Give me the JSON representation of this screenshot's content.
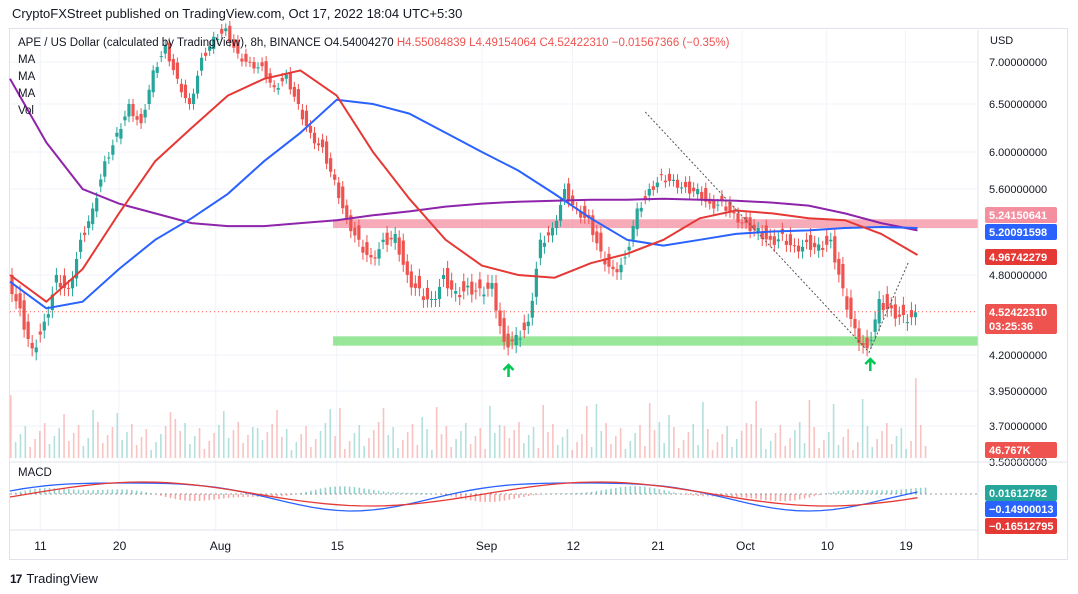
{
  "header": {
    "published": "CryptoFXStreet published on TradingView.com, Oct 17, 2022 18:04 UTC+5:30"
  },
  "legend": {
    "symbol": "APE / US Dollar (calculated by TradingView), 8h, BINANCE",
    "open": "O4.54004270",
    "high": "H4.55084839",
    "low": "L4.49154064",
    "close": "C4.52422310",
    "change": "−0.01567366 (−0.35%)",
    "ma_labels": [
      "MA",
      "MA",
      "MA"
    ],
    "vol_label": "Vol"
  },
  "macd_label": "MACD",
  "footer": {
    "brand": "TradingView",
    "logo": "17"
  },
  "colors": {
    "up": "#26a69a",
    "down": "#ef5350",
    "ma_red": "#e53935",
    "ma_blue": "#2962ff",
    "ma_purple": "#8e24aa",
    "resistance": "#f48fa0",
    "support": "#7ee07e",
    "arrow": "#00c853"
  },
  "chart_data": {
    "type": "line",
    "title": "APE / US Dollar (calculated by TradingView), 8h, BINANCE",
    "price_axis": {
      "unit": "USD",
      "ticks": [
        "7.00000000",
        "6.50000000",
        "6.00000000",
        "5.60000000",
        "5.20000000",
        "4.80000000",
        "4.20000000",
        "3.95000000",
        "3.70000000",
        "3.50000000"
      ]
    },
    "x_ticks": [
      "11",
      "20",
      "Aug",
      "15",
      "Sep",
      "12",
      "21",
      "Oct",
      "10",
      "19"
    ],
    "price_labels": [
      {
        "value": "5.24150641",
        "color": "#f48fa0"
      },
      {
        "value": "5.20091598",
        "color": "#2962ff"
      },
      {
        "value": "4.96742279",
        "color": "#e53935"
      },
      {
        "value": "4.52422310",
        "color": "#ef5350"
      },
      {
        "value": "03:25:36",
        "color": "#ef5350"
      },
      {
        "value": "46.767K",
        "color": "#ef5350"
      }
    ],
    "macd_labels": [
      {
        "value": "0.01612782",
        "color": "#26a69a"
      },
      {
        "value": "−0.14900013",
        "color": "#2962ff"
      },
      {
        "value": "−0.16512795",
        "color": "#e53935"
      }
    ],
    "zones": {
      "resistance": {
        "low": 5.2,
        "high": 5.29
      },
      "support": {
        "low": 4.27,
        "high": 4.34
      }
    },
    "close_price": 4.5242231,
    "price_path": [
      {
        "d": 0,
        "p": 4.8
      },
      {
        "d": 1,
        "p": 4.55
      },
      {
        "d": 2,
        "p": 4.25
      },
      {
        "d": 3,
        "p": 4.45
      },
      {
        "d": 4,
        "p": 4.8
      },
      {
        "d": 5,
        "p": 4.7
      },
      {
        "d": 6,
        "p": 5.1
      },
      {
        "d": 7,
        "p": 5.4
      },
      {
        "d": 8,
        "p": 5.9
      },
      {
        "d": 9,
        "p": 6.2
      },
      {
        "d": 10,
        "p": 6.5
      },
      {
        "d": 11,
        "p": 6.3
      },
      {
        "d": 12,
        "p": 6.9
      },
      {
        "d": 13,
        "p": 7.2
      },
      {
        "d": 14,
        "p": 6.8
      },
      {
        "d": 15,
        "p": 6.5
      },
      {
        "d": 16,
        "p": 7.05
      },
      {
        "d": 17,
        "p": 7.3
      },
      {
        "d": 18,
        "p": 7.4
      },
      {
        "d": 19,
        "p": 7.1
      },
      {
        "d": 20,
        "p": 7.0
      },
      {
        "d": 21,
        "p": 6.95
      },
      {
        "d": 22,
        "p": 6.7
      },
      {
        "d": 23,
        "p": 6.85
      },
      {
        "d": 24,
        "p": 6.5
      },
      {
        "d": 25,
        "p": 6.2
      },
      {
        "d": 26,
        "p": 6.05
      },
      {
        "d": 27,
        "p": 5.7
      },
      {
        "d": 28,
        "p": 5.3
      },
      {
        "d": 29,
        "p": 5.1
      },
      {
        "d": 30,
        "p": 4.95
      },
      {
        "d": 31,
        "p": 5.1
      },
      {
        "d": 32,
        "p": 5.15
      },
      {
        "d": 33,
        "p": 4.8
      },
      {
        "d": 34,
        "p": 4.7
      },
      {
        "d": 35,
        "p": 4.62
      },
      {
        "d": 36,
        "p": 4.8
      },
      {
        "d": 37,
        "p": 4.68
      },
      {
        "d": 38,
        "p": 4.72
      },
      {
        "d": 39,
        "p": 4.7
      },
      {
        "d": 40,
        "p": 4.74
      },
      {
        "d": 41,
        "p": 4.3
      },
      {
        "d": 42,
        "p": 4.35
      },
      {
        "d": 43,
        "p": 4.45
      },
      {
        "d": 44,
        "p": 5.1
      },
      {
        "d": 45,
        "p": 5.2
      },
      {
        "d": 46,
        "p": 5.6
      },
      {
        "d": 47,
        "p": 5.4
      },
      {
        "d": 48,
        "p": 5.3
      },
      {
        "d": 49,
        "p": 5.0
      },
      {
        "d": 50,
        "p": 4.85
      },
      {
        "d": 51,
        "p": 4.95
      },
      {
        "d": 52,
        "p": 5.4
      },
      {
        "d": 53,
        "p": 5.6
      },
      {
        "d": 54,
        "p": 5.75
      },
      {
        "d": 55,
        "p": 5.7
      },
      {
        "d": 56,
        "p": 5.62
      },
      {
        "d": 57,
        "p": 5.6
      },
      {
        "d": 58,
        "p": 5.45
      },
      {
        "d": 59,
        "p": 5.48
      },
      {
        "d": 60,
        "p": 5.35
      },
      {
        "d": 61,
        "p": 5.25
      },
      {
        "d": 62,
        "p": 5.2
      },
      {
        "d": 63,
        "p": 5.1
      },
      {
        "d": 64,
        "p": 5.15
      },
      {
        "d": 65,
        "p": 5.05
      },
      {
        "d": 66,
        "p": 5.08
      },
      {
        "d": 67,
        "p": 5.06
      },
      {
        "d": 68,
        "p": 5.1
      },
      {
        "d": 69,
        "p": 4.7
      },
      {
        "d": 70,
        "p": 4.4
      },
      {
        "d": 71,
        "p": 4.25
      },
      {
        "d": 72,
        "p": 4.62
      },
      {
        "d": 73,
        "p": 4.55
      },
      {
        "d": 74,
        "p": 4.5
      },
      {
        "d": 75,
        "p": 4.52
      }
    ],
    "ma_red": [
      {
        "d": 0,
        "p": 4.8
      },
      {
        "d": 3,
        "p": 4.6
      },
      {
        "d": 6,
        "p": 4.85
      },
      {
        "d": 9,
        "p": 5.35
      },
      {
        "d": 12,
        "p": 5.9
      },
      {
        "d": 15,
        "p": 6.25
      },
      {
        "d": 18,
        "p": 6.6
      },
      {
        "d": 21,
        "p": 6.8
      },
      {
        "d": 24,
        "p": 6.9
      },
      {
        "d": 27,
        "p": 6.6
      },
      {
        "d": 30,
        "p": 6.0
      },
      {
        "d": 33,
        "p": 5.5
      },
      {
        "d": 36,
        "p": 5.1
      },
      {
        "d": 39,
        "p": 4.88
      },
      {
        "d": 42,
        "p": 4.8
      },
      {
        "d": 45,
        "p": 4.78
      },
      {
        "d": 48,
        "p": 4.9
      },
      {
        "d": 51,
        "p": 4.98
      },
      {
        "d": 54,
        "p": 5.1
      },
      {
        "d": 57,
        "p": 5.3
      },
      {
        "d": 60,
        "p": 5.38
      },
      {
        "d": 63,
        "p": 5.35
      },
      {
        "d": 66,
        "p": 5.3
      },
      {
        "d": 69,
        "p": 5.28
      },
      {
        "d": 72,
        "p": 5.15
      },
      {
        "d": 75,
        "p": 4.97
      }
    ],
    "ma_blue": [
      {
        "d": 0,
        "p": 4.75
      },
      {
        "d": 3,
        "p": 4.55
      },
      {
        "d": 6,
        "p": 4.6
      },
      {
        "d": 9,
        "p": 4.85
      },
      {
        "d": 12,
        "p": 5.1
      },
      {
        "d": 15,
        "p": 5.3
      },
      {
        "d": 18,
        "p": 5.55
      },
      {
        "d": 21,
        "p": 5.9
      },
      {
        "d": 24,
        "p": 6.2
      },
      {
        "d": 27,
        "p": 6.55
      },
      {
        "d": 30,
        "p": 6.5
      },
      {
        "d": 33,
        "p": 6.4
      },
      {
        "d": 36,
        "p": 6.2
      },
      {
        "d": 39,
        "p": 6.0
      },
      {
        "d": 42,
        "p": 5.8
      },
      {
        "d": 45,
        "p": 5.55
      },
      {
        "d": 48,
        "p": 5.3
      },
      {
        "d": 51,
        "p": 5.1
      },
      {
        "d": 54,
        "p": 5.05
      },
      {
        "d": 57,
        "p": 5.1
      },
      {
        "d": 60,
        "p": 5.15
      },
      {
        "d": 63,
        "p": 5.17
      },
      {
        "d": 66,
        "p": 5.18
      },
      {
        "d": 69,
        "p": 5.2
      },
      {
        "d": 72,
        "p": 5.21
      },
      {
        "d": 75,
        "p": 5.2
      }
    ],
    "ma_purple": [
      {
        "d": 0,
        "p": 6.8
      },
      {
        "d": 3,
        "p": 6.1
      },
      {
        "d": 6,
        "p": 5.6
      },
      {
        "d": 9,
        "p": 5.45
      },
      {
        "d": 12,
        "p": 5.35
      },
      {
        "d": 15,
        "p": 5.25
      },
      {
        "d": 18,
        "p": 5.22
      },
      {
        "d": 21,
        "p": 5.22
      },
      {
        "d": 24,
        "p": 5.25
      },
      {
        "d": 27,
        "p": 5.28
      },
      {
        "d": 30,
        "p": 5.33
      },
      {
        "d": 33,
        "p": 5.37
      },
      {
        "d": 36,
        "p": 5.42
      },
      {
        "d": 39,
        "p": 5.45
      },
      {
        "d": 42,
        "p": 5.47
      },
      {
        "d": 45,
        "p": 5.48
      },
      {
        "d": 48,
        "p": 5.49
      },
      {
        "d": 51,
        "p": 5.49
      },
      {
        "d": 54,
        "p": 5.5
      },
      {
        "d": 57,
        "p": 5.49
      },
      {
        "d": 60,
        "p": 5.48
      },
      {
        "d": 63,
        "p": 5.46
      },
      {
        "d": 66,
        "p": 5.43
      },
      {
        "d": 69,
        "p": 5.35
      },
      {
        "d": 72,
        "p": 5.25
      },
      {
        "d": 75,
        "p": 5.18
      }
    ]
  }
}
